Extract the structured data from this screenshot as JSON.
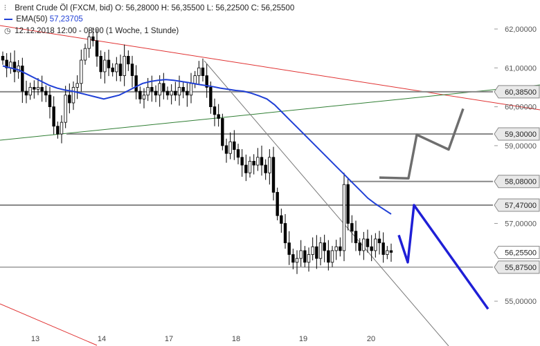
{
  "header": {
    "line1": "Brent Crude Öl (FXCM, bid)  O: 56,28000  H: 56,35500  L: 56,22500  C: 56,25500",
    "ema_label": "EMA(50)",
    "ema_value": "57,23705",
    "line3": "12.12.2018 12:00 - 08:00  (1 Woche, 1 Stunde)"
  },
  "icons": {
    "chart_icon": "candlestick-icon",
    "clock_icon": "clock-icon"
  },
  "colors": {
    "ema": "#1f3fd6",
    "resistance_trend": "#e03030",
    "support_trend": "#2e7d32",
    "projection_blue": "#1f1fd6",
    "projection_gray": "#6e6e6e",
    "level_lines": "#888888",
    "candle_bull": "#ffffff",
    "candle_bear": "#000000"
  },
  "chart_data": {
    "type": "candlestick",
    "title": "Brent Crude Öl (FXCM, bid)",
    "x_tick_labels": [
      "13",
      "14",
      "17",
      "18",
      "19",
      "20"
    ],
    "y_tick_labels": [
      "62,00000",
      "61,00000",
      "60,00000",
      "59,00000",
      "57,00000",
      "55,00000"
    ],
    "y_ticks": [
      62,
      61,
      60,
      59,
      57,
      55
    ],
    "ylim": [
      54.45,
      62.25
    ],
    "horizontal_levels": [
      {
        "value": 60.385,
        "label": "60,38500"
      },
      {
        "value": 59.3,
        "label": "59,30000"
      },
      {
        "value": 58.08,
        "label": "58,08000"
      },
      {
        "value": 57.47,
        "label": "57,47000"
      },
      {
        "value": 55.875,
        "label": "55,87500"
      }
    ],
    "last_price": {
      "value": 56.255,
      "label": "56,25500"
    },
    "closes": [
      61.2,
      61.0,
      61.15,
      60.9,
      61.05,
      60.4,
      60.3,
      60.5,
      60.45,
      60.5,
      60.4,
      60.3,
      60.0,
      59.5,
      59.3,
      59.6,
      60.3,
      60.1,
      60.5,
      60.6,
      61.2,
      61.5,
      61.8,
      61.7,
      61.3,
      60.9,
      61.2,
      61.0,
      60.9,
      61.1,
      60.8,
      61.3,
      61.1,
      60.8,
      60.4,
      60.2,
      60.3,
      60.5,
      60.4,
      60.3,
      60.6,
      60.4,
      60.3,
      60.4,
      60.3,
      60.5,
      60.4,
      60.3,
      60.6,
      60.8,
      61.0,
      60.8,
      60.5,
      60.0,
      59.8,
      59.7,
      59.0,
      58.8,
      59.1,
      58.9,
      58.7,
      58.5,
      58.3,
      58.6,
      58.5,
      58.7,
      58.5,
      58.3,
      58.7,
      57.8,
      57.2,
      57.0,
      56.5,
      56.2,
      56.0,
      56.1,
      56.3,
      56.0,
      56.2,
      56.4,
      56.1,
      56.5,
      56.3,
      56.0,
      56.3,
      56.4,
      56.3,
      58.0,
      57.0,
      56.8,
      56.5,
      56.3,
      56.6,
      56.4,
      56.3,
      56.6,
      56.5,
      56.2,
      56.3,
      56.255
    ],
    "ema50": [
      61.05,
      61.0,
      60.95,
      60.85,
      60.75,
      60.65,
      60.55,
      60.48,
      60.43,
      60.4,
      60.35,
      60.3,
      60.25,
      60.2,
      60.25,
      60.3,
      60.4,
      60.5,
      60.6,
      60.65,
      60.68,
      60.7,
      60.68,
      60.65,
      60.62,
      60.58,
      60.55,
      60.52,
      60.48,
      60.45,
      60.42,
      60.4,
      60.35,
      60.28,
      60.2,
      60.05,
      59.85,
      59.65,
      59.45,
      59.25,
      59.05,
      58.85,
      58.65,
      58.45,
      58.25,
      58.05,
      57.85,
      57.65,
      57.5,
      57.37,
      57.24
    ],
    "projection_blue": [
      56.7,
      56.0,
      57.47,
      54.8
    ],
    "projection_gray": [
      58.18,
      58.16,
      59.28,
      58.9,
      59.95
    ]
  }
}
